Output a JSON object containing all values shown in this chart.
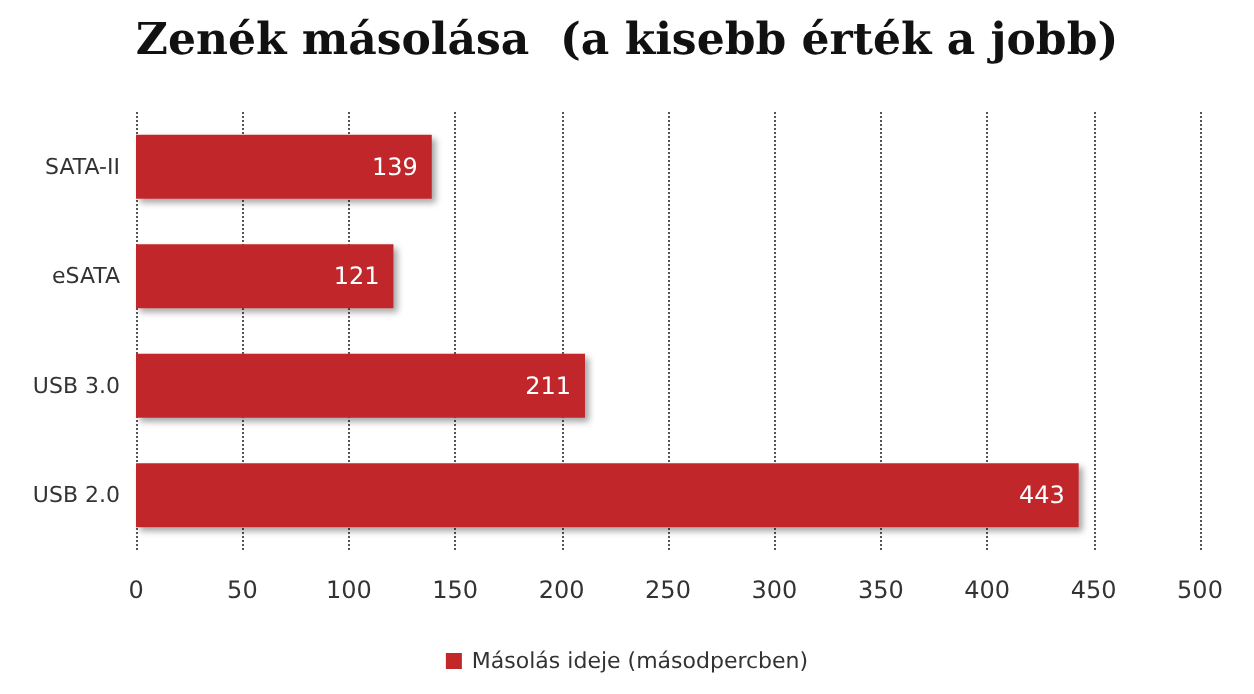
{
  "chart_data": {
    "type": "bar",
    "orientation": "horizontal",
    "title": "Zenék másolása  (a kisebb érték a jobb)",
    "categories": [
      "SATA-II",
      "eSATA",
      "USB 3.0",
      "USB 2.0"
    ],
    "series": [
      {
        "name": "Másolás ideje (másodpercben)",
        "color": "#c0282a",
        "values": [
          139,
          121,
          211,
          443
        ]
      }
    ],
    "xlim": [
      0,
      500
    ],
    "xticks": [
      0,
      50,
      100,
      150,
      200,
      250,
      300,
      350,
      400,
      450,
      500
    ],
    "grid": "x",
    "legend": "bottom",
    "data_labels": true
  }
}
